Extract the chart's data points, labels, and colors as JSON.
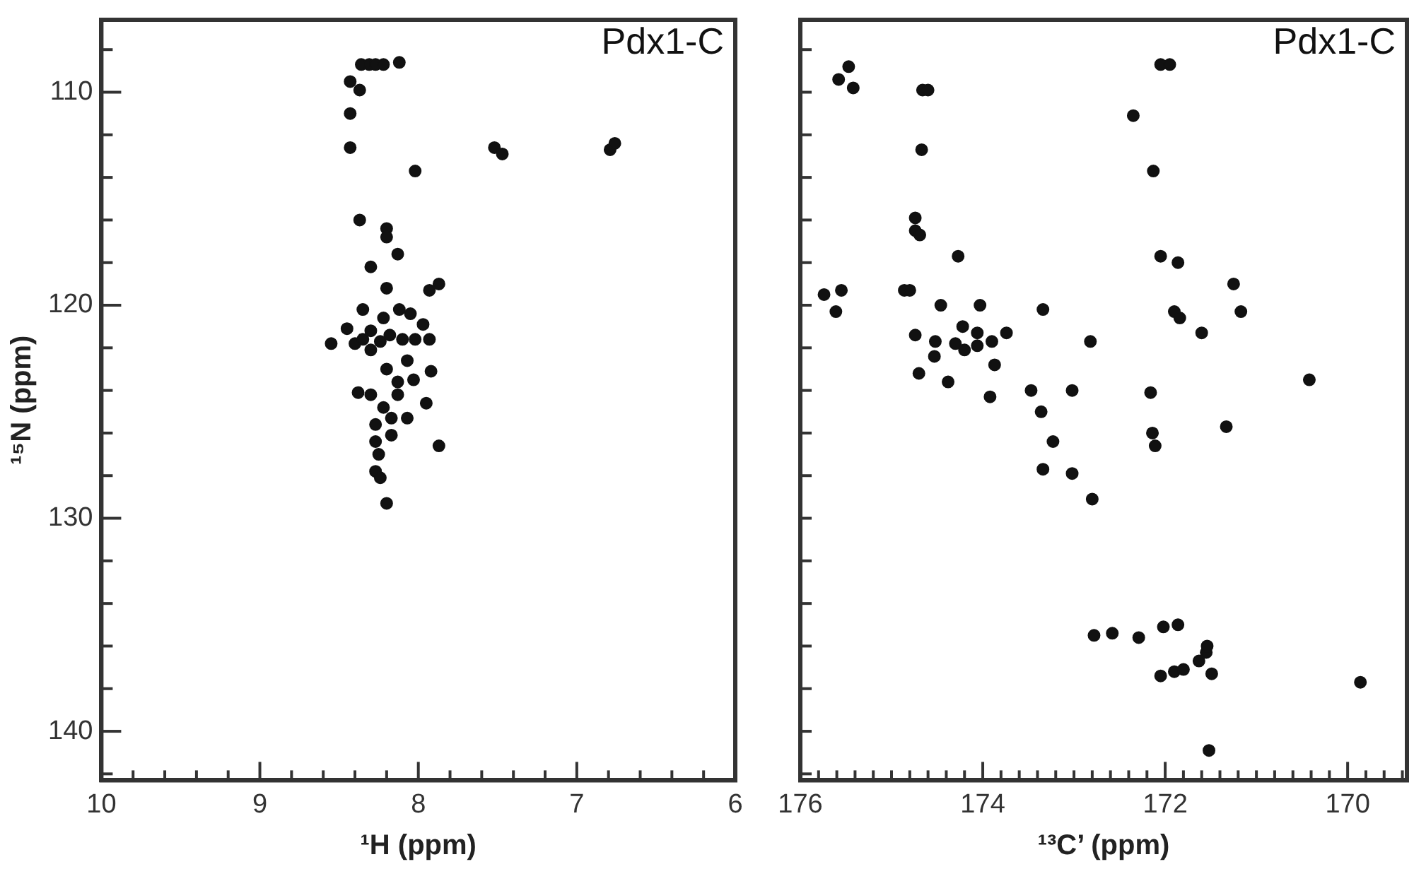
{
  "chart_data": [
    {
      "type": "scatter",
      "xlabel": "¹H (ppm)",
      "ylabel": "¹⁵N (ppm)",
      "annotations": [
        "Pdx1-C"
      ],
      "marker": "circle",
      "xlim": [
        10,
        6
      ],
      "ylim": [
        142.3,
        106.6
      ],
      "xticks": [
        10,
        {
          "value": 9.8,
          "label": null
        },
        {
          "value": 9.6,
          "label": null
        },
        {
          "value": 9.4,
          "label": null
        },
        {
          "value": 9.2,
          "label": null
        },
        9,
        {
          "value": 8.8,
          "label": null
        },
        {
          "value": 8.6,
          "label": null
        },
        {
          "value": 8.4,
          "label": null
        },
        {
          "value": 8.2,
          "label": null
        },
        8,
        {
          "value": 7.8,
          "label": null
        },
        {
          "value": 7.6,
          "label": null
        },
        {
          "value": 7.4,
          "label": null
        },
        {
          "value": 7.2,
          "label": null
        },
        7,
        {
          "value": 6.8,
          "label": null
        },
        {
          "value": 6.6,
          "label": null
        },
        {
          "value": 6.4,
          "label": null
        },
        {
          "value": 6.2,
          "label": null
        },
        6
      ],
      "yticks": [
        {
          "value": 108,
          "label": null
        },
        110,
        {
          "value": 112,
          "label": null
        },
        {
          "value": 114,
          "label": null
        },
        {
          "value": 116,
          "label": null
        },
        {
          "value": 118,
          "label": null
        },
        120,
        {
          "value": 122,
          "label": null
        },
        {
          "value": 124,
          "label": null
        },
        {
          "value": 126,
          "label": null
        },
        {
          "value": 128,
          "label": null
        },
        130,
        {
          "value": 132,
          "label": null
        },
        {
          "value": 134,
          "label": null
        },
        {
          "value": 136,
          "label": null
        },
        {
          "value": 138,
          "label": null
        },
        140,
        {
          "value": 142,
          "label": null
        }
      ],
      "series": [
        {
          "color": "#111111",
          "x": [
            8.36,
            8.31,
            8.27,
            8.22,
            8.12,
            8.43,
            8.37,
            8.43,
            8.43,
            8.02,
            7.52,
            7.47,
            6.79,
            6.76,
            8.37,
            8.2,
            8.2,
            8.13,
            8.3,
            8.2,
            7.93,
            7.87,
            8.35,
            8.12,
            8.22,
            8.05,
            7.97,
            8.45,
            8.55,
            8.4,
            8.35,
            8.3,
            8.24,
            8.18,
            8.1,
            8.02,
            7.93,
            8.3,
            8.07,
            8.2,
            7.92,
            8.13,
            8.03,
            8.38,
            8.3,
            8.13,
            8.22,
            7.95,
            8.17,
            8.07,
            8.27,
            8.17,
            8.27,
            7.87,
            8.25,
            8.27,
            8.24,
            8.2
          ],
          "values": [
            108.7,
            108.7,
            108.7,
            108.7,
            108.6,
            109.5,
            109.9,
            111.0,
            112.6,
            113.7,
            112.6,
            112.9,
            112.7,
            112.4,
            116.0,
            116.4,
            116.8,
            117.6,
            118.2,
            119.2,
            119.3,
            119.0,
            120.2,
            120.2,
            120.6,
            120.4,
            120.9,
            121.1,
            121.8,
            121.8,
            121.6,
            121.2,
            121.7,
            121.4,
            121.6,
            121.6,
            121.6,
            122.1,
            122.6,
            123.0,
            123.1,
            123.6,
            123.5,
            124.1,
            124.2,
            124.2,
            124.8,
            124.6,
            125.3,
            125.3,
            125.6,
            126.1,
            126.4,
            126.6,
            127.0,
            127.8,
            128.1,
            129.3
          ]
        }
      ]
    },
    {
      "type": "scatter",
      "xlabel": "¹³C’ (ppm)",
      "annotations": [
        "Pdx1-C"
      ],
      "marker": "circle",
      "tick_labels": "x",
      "xlim": [
        176,
        169.35
      ],
      "ylim": [
        142.3,
        106.6
      ],
      "xticks": [
        176,
        {
          "value": 175.8,
          "label": null
        },
        {
          "value": 175.6,
          "label": null
        },
        {
          "value": 175.4,
          "label": null
        },
        {
          "value": 175.2,
          "label": null
        },
        {
          "value": 175,
          "label": null
        },
        {
          "value": 174.8,
          "label": null
        },
        {
          "value": 174.6,
          "label": null
        },
        {
          "value": 174.4,
          "label": null
        },
        {
          "value": 174.2,
          "label": null
        },
        174,
        {
          "value": 173.8,
          "label": null
        },
        {
          "value": 173.6,
          "label": null
        },
        {
          "value": 173.4,
          "label": null
        },
        {
          "value": 173.2,
          "label": null
        },
        {
          "value": 173,
          "label": null
        },
        {
          "value": 172.8,
          "label": null
        },
        {
          "value": 172.6,
          "label": null
        },
        {
          "value": 172.4,
          "label": null
        },
        {
          "value": 172.2,
          "label": null
        },
        172,
        {
          "value": 171.8,
          "label": null
        },
        {
          "value": 171.6,
          "label": null
        },
        {
          "value": 171.4,
          "label": null
        },
        {
          "value": 171.2,
          "label": null
        },
        {
          "value": 171,
          "label": null
        },
        {
          "value": 170.8,
          "label": null
        },
        {
          "value": 170.6,
          "label": null
        },
        {
          "value": 170.4,
          "label": null
        },
        {
          "value": 170.2,
          "label": null
        },
        170,
        {
          "value": 169.8,
          "label": null
        },
        {
          "value": 169.6,
          "label": null
        },
        {
          "value": 169.4,
          "label": null
        }
      ],
      "yticks": [
        {
          "value": 108,
          "label": null
        },
        {
          "value": 110,
          "label": null
        },
        {
          "value": 112,
          "label": null
        },
        {
          "value": 114,
          "label": null
        },
        {
          "value": 116,
          "label": null
        },
        {
          "value": 118,
          "label": null
        },
        {
          "value": 120,
          "label": null
        },
        {
          "value": 122,
          "label": null
        },
        {
          "value": 124,
          "label": null
        },
        {
          "value": 126,
          "label": null
        },
        {
          "value": 128,
          "label": null
        },
        {
          "value": 130,
          "label": null
        },
        {
          "value": 132,
          "label": null
        },
        {
          "value": 134,
          "label": null
        },
        {
          "value": 136,
          "label": null
        },
        {
          "value": 138,
          "label": null
        },
        {
          "value": 140,
          "label": null
        },
        {
          "value": 142,
          "label": null
        }
      ],
      "series": [
        {
          "color": "#111111",
          "x": [
            175.47,
            175.58,
            175.42,
            174.66,
            174.6,
            172.05,
            171.95,
            172.35,
            174.67,
            172.13,
            174.74,
            174.74,
            174.69,
            174.27,
            175.74,
            175.55,
            174.86,
            174.8,
            175.61,
            174.46,
            174.03,
            173.34,
            172.05,
            171.86,
            171.9,
            171.84,
            171.6,
            171.25,
            171.17,
            174.74,
            174.52,
            174.53,
            174.3,
            174.06,
            174.22,
            173.9,
            173.74,
            174.06,
            174.2,
            173.87,
            174.7,
            174.38,
            173.92,
            173.47,
            173.02,
            172.82,
            173.36,
            173.23,
            173.34,
            173.02,
            172.8,
            172.16,
            172.14,
            172.11,
            171.33,
            170.42,
            172.78,
            172.58,
            172.29,
            172.02,
            171.86,
            172.05,
            171.9,
            171.8,
            171.63,
            171.55,
            171.54,
            171.49,
            171.52,
            169.86
          ],
          "values": [
            108.8,
            109.4,
            109.8,
            109.9,
            109.9,
            108.7,
            108.7,
            111.1,
            112.7,
            113.7,
            115.9,
            116.5,
            116.7,
            117.7,
            119.5,
            119.3,
            119.3,
            119.3,
            120.3,
            120.0,
            120.0,
            120.2,
            117.7,
            118.0,
            120.3,
            120.6,
            121.3,
            119.0,
            120.3,
            121.4,
            121.7,
            122.4,
            121.8,
            121.3,
            121.0,
            121.7,
            121.3,
            121.9,
            122.1,
            122.8,
            123.2,
            123.6,
            124.3,
            124.0,
            124.0,
            121.7,
            125.0,
            126.4,
            127.7,
            127.9,
            129.1,
            124.1,
            126.0,
            126.6,
            125.7,
            123.5,
            135.5,
            135.4,
            135.6,
            135.1,
            135.0,
            137.4,
            137.2,
            137.1,
            136.7,
            136.3,
            136.0,
            137.3,
            140.9,
            137.7
          ]
        }
      ]
    }
  ]
}
